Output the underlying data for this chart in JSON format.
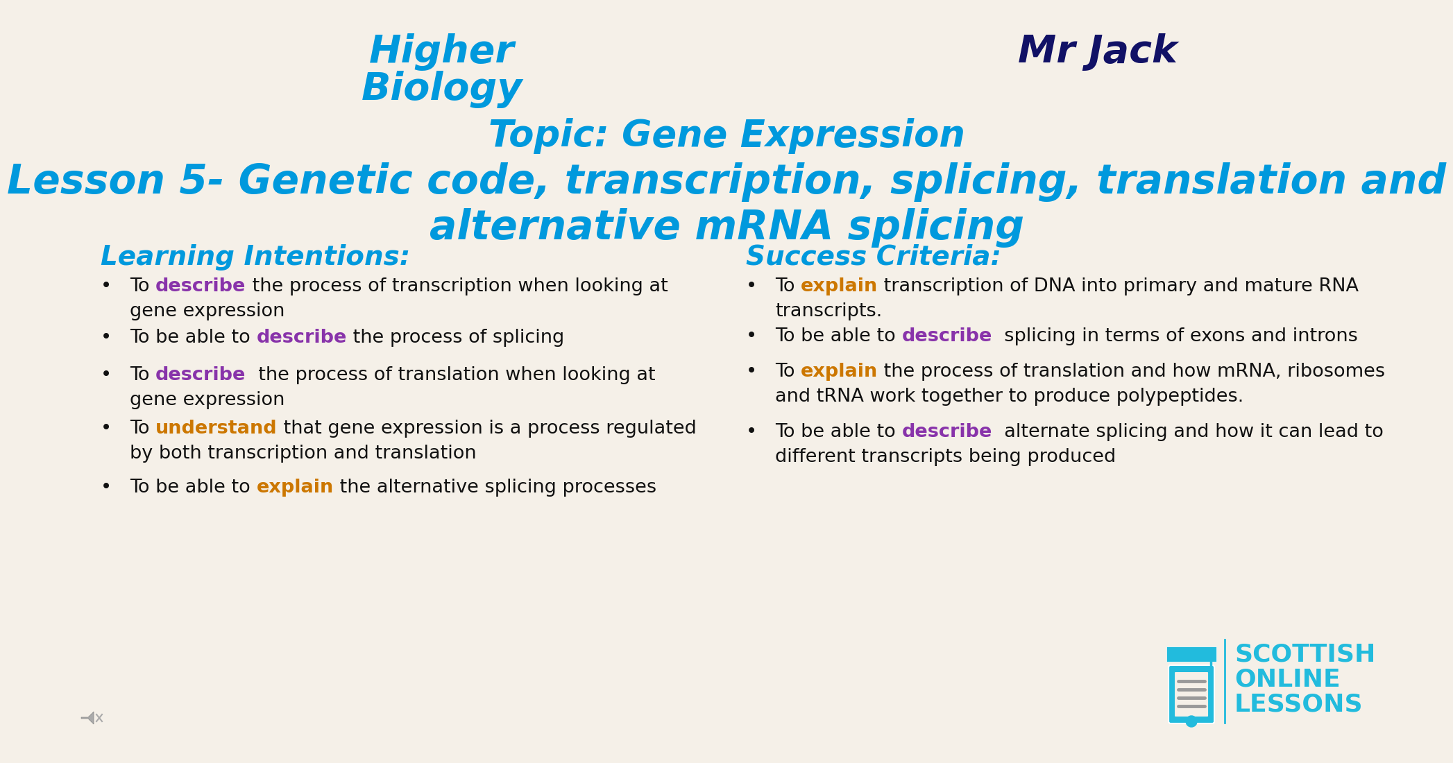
{
  "bg_color": "#f5f0e8",
  "title1": "Higher",
  "title2": "Biology",
  "topic": "Topic: Gene Expression",
  "lesson1": "Lesson 5- Genetic code, transcription, splicing, translation and",
  "lesson2": "alternative mRNA splicing",
  "title_color": "#0099dd",
  "mr_jack": "Mr Jack",
  "mr_jack_color": "#111166",
  "li_header": "Learning Intentions:",
  "sc_header": "Success Criteria:",
  "header_color": "#0099dd",
  "describe_color": "#8833aa",
  "explain_color": "#cc7700",
  "understand_color": "#cc7700",
  "body_color": "#111111",
  "logo_color": "#22bbdd",
  "font": "Comic Sans MS",
  "li_items": [
    {
      "lines": [
        [
          [
            "To ",
            "#111111",
            false
          ],
          [
            "describe",
            "#8833aa",
            true
          ],
          [
            " the process of transcription when looking at",
            "#111111",
            false
          ]
        ],
        [
          [
            "gene expression",
            "#111111",
            false
          ]
        ]
      ]
    },
    {
      "lines": [
        [
          [
            "To be able to ",
            "#111111",
            false
          ],
          [
            "describe",
            "#8833aa",
            true
          ],
          [
            " the process of splicing",
            "#111111",
            false
          ]
        ]
      ]
    },
    {
      "lines": [
        [
          [
            "To ",
            "#111111",
            false
          ],
          [
            "describe",
            "#8833aa",
            true
          ],
          [
            "  the process of translation when looking at",
            "#111111",
            false
          ]
        ],
        [
          [
            "gene expression",
            "#111111",
            false
          ]
        ]
      ]
    },
    {
      "lines": [
        [
          [
            "To ",
            "#111111",
            false
          ],
          [
            "understand",
            "#cc7700",
            true
          ],
          [
            " that gene expression is a process regulated",
            "#111111",
            false
          ]
        ],
        [
          [
            "by both transcription and translation",
            "#111111",
            false
          ]
        ]
      ]
    },
    {
      "lines": [
        [
          [
            "To be able to ",
            "#111111",
            false
          ],
          [
            "explain",
            "#cc7700",
            true
          ],
          [
            " the alternative splicing processes",
            "#111111",
            false
          ]
        ]
      ]
    }
  ],
  "sc_items": [
    {
      "lines": [
        [
          [
            "To ",
            "#111111",
            false
          ],
          [
            "explain",
            "#cc7700",
            true
          ],
          [
            " transcription of DNA into primary and mature RNA",
            "#111111",
            false
          ]
        ],
        [
          [
            "transcripts.",
            "#111111",
            false
          ]
        ]
      ]
    },
    {
      "lines": [
        [
          [
            "To be able to ",
            "#111111",
            false
          ],
          [
            "describe",
            "#8833aa",
            true
          ],
          [
            "  splicing in terms of exons and introns",
            "#111111",
            false
          ]
        ]
      ]
    },
    {
      "lines": [
        [
          [
            "To ",
            "#111111",
            false
          ],
          [
            "explain",
            "#cc7700",
            true
          ],
          [
            " the process of translation and how mRNA, ribosomes",
            "#111111",
            false
          ]
        ],
        [
          [
            "and tRNA work together to produce polypeptides.",
            "#111111",
            false
          ]
        ]
      ]
    },
    {
      "lines": [
        [
          [
            "To be able to ",
            "#111111",
            false
          ],
          [
            "describe",
            "#8833aa",
            true
          ],
          [
            "  alternate splicing and how it can lead to",
            "#111111",
            false
          ]
        ],
        [
          [
            "different transcripts being produced",
            "#111111",
            false
          ]
        ]
      ]
    }
  ]
}
